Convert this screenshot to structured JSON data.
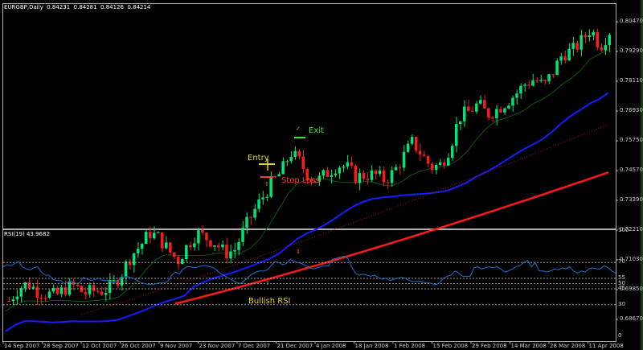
{
  "window": {
    "symbol_title": "EURGBP,Daily  0.84231  0.84281  0.84126  0.84214",
    "rsi_title": "RSI(19) 43.9682"
  },
  "colors": {
    "background": "#000000",
    "bull_candle": "#00e676",
    "bear_candle": "#ff1a1a",
    "ma_fast": "#0a5a0a",
    "ma_mid": "#1a1aff",
    "ma_slow_dotted": "#b01010",
    "ma_slowest": "#ff1a1a",
    "rsi_line": "#1e6fd0",
    "level_lines": "#c0c0c0",
    "annotation_yellow": "#e6d21a",
    "annotation_green": "#33e633",
    "annotation_red": "#ff4020",
    "arrow_orange": "#e0a020"
  },
  "price_axis": {
    "labels": [
      "0.80470",
      "0.79290",
      "0.78110",
      "0.76930",
      "0.75750",
      "0.74570",
      "0.73390",
      "0.72210",
      "0.71030",
      "0.69850",
      "0.68670"
    ]
  },
  "rsi_axis": {
    "labels": [
      "100",
      "70",
      "55",
      "50",
      "45",
      "30",
      "0"
    ]
  },
  "time_axis": {
    "labels": [
      "14 Sep 2007",
      "28 Sep 2007",
      "12 Oct 2007",
      "26 Oct 2007",
      "9 Nov 2007",
      "23 Nov 2007",
      "7 Dec 2007",
      "21 Dec 2007",
      "4 Jan 2008",
      "18 Jan 2008",
      "1 Feb 2008",
      "15 Feb 2008",
      "29 Feb 2008",
      "14 Mar 2008",
      "28 Mar 2008",
      "11 Apr 2008"
    ]
  },
  "annotations": {
    "entry": "Entry",
    "exit": "Exit",
    "stop_loss": "Stop Loss",
    "bullish_rsi": "Bullish RSI"
  },
  "chart_data": [
    {
      "type": "candlestick",
      "title": "EURGBP,Daily",
      "ohlc_header": {
        "open": 0.84231,
        "high": 0.84281,
        "low": 0.84126,
        "close": 0.84214
      },
      "ylim": [
        0.6808,
        0.8106
      ],
      "yticks": [
        0.8047,
        0.7929,
        0.7811,
        0.7693,
        0.7575,
        0.7457,
        0.7339,
        0.7221,
        0.7103,
        0.6985,
        0.6867
      ],
      "xticks": [
        "14 Sep 2007",
        "28 Sep 2007",
        "12 Oct 2007",
        "26 Oct 2007",
        "9 Nov 2007",
        "23 Nov 2007",
        "7 Dec 2007",
        "21 Dec 2007",
        "4 Jan 2008",
        "18 Jan 2008",
        "1 Feb 2008",
        "15 Feb 2008",
        "29 Feb 2008",
        "14 Mar 2008",
        "28 Mar 2008",
        "11 Apr 2008"
      ],
      "close_trend": [
        0.694,
        0.699,
        0.701,
        0.698,
        0.697,
        0.696,
        0.699,
        0.7,
        0.697,
        0.698,
        0.698,
        0.7,
        0.705,
        0.712,
        0.716,
        0.721,
        0.719,
        0.714,
        0.71,
        0.716,
        0.721,
        0.719,
        0.717,
        0.713,
        0.714,
        0.722,
        0.729,
        0.735,
        0.741,
        0.745,
        0.753,
        0.749,
        0.743,
        0.742,
        0.745,
        0.748,
        0.747,
        0.743,
        0.744,
        0.744,
        0.742,
        0.745,
        0.751,
        0.757,
        0.752,
        0.747,
        0.748,
        0.755,
        0.767,
        0.769,
        0.772,
        0.768,
        0.77,
        0.773,
        0.776,
        0.78,
        0.782,
        0.779,
        0.785,
        0.792,
        0.793,
        0.797,
        0.802,
        0.795,
        0.801
      ],
      "moving_averages": [
        {
          "name": "MA fast (dark green)",
          "start": 0.684,
          "end": 0.794
        },
        {
          "name": "MA mid (blue)",
          "start": 0.69,
          "end": 0.782
        },
        {
          "name": "MA slow (dotted red)",
          "start": 0.681,
          "end": 0.764
        },
        {
          "name": "MA slowest (thick red)",
          "start": 0.68,
          "end": 0.745
        }
      ],
      "annotations": [
        {
          "text": "Entry",
          "approx_date": "17 Dec 2007",
          "price": 0.7215
        },
        {
          "text": "Stop Loss",
          "approx_date": "17 Dec 2007",
          "price": 0.715
        },
        {
          "text": "Exit",
          "approx_date": "1 Jan 2008",
          "price": 0.7375
        }
      ]
    },
    {
      "type": "line",
      "title": "RSI(19) 43.9682",
      "ylim": [
        0,
        100
      ],
      "levels": [
        70,
        55,
        50,
        45,
        30
      ],
      "yticks": [
        100,
        70,
        55,
        50,
        45,
        30,
        0
      ],
      "values": [
        66,
        68,
        67,
        69,
        71,
        66,
        64,
        63,
        65,
        66,
        61,
        58,
        58,
        54,
        53,
        53,
        50,
        51,
        52,
        50,
        51,
        56,
        54,
        53,
        54,
        55,
        53,
        53,
        52,
        51,
        53,
        55,
        57,
        56,
        55,
        53,
        51,
        50,
        49,
        49,
        50,
        51,
        51,
        52,
        58,
        61,
        59,
        64,
        66,
        66,
        65,
        66,
        67,
        67,
        66,
        65,
        62,
        59,
        57,
        55,
        53,
        51,
        50,
        53,
        56,
        59,
        61,
        62,
        62,
        63,
        67,
        71,
        70,
        68,
        69,
        73,
        71,
        70,
        69,
        67,
        65,
        64,
        65,
        66,
        67,
        67,
        73,
        74,
        75,
        76,
        74,
        66,
        60,
        58,
        59,
        58,
        57,
        58,
        56,
        54,
        55,
        53,
        54,
        55,
        56,
        55,
        53,
        52,
        52,
        52,
        51,
        51,
        50,
        49,
        51,
        55,
        57,
        58,
        62,
        60,
        57,
        57,
        57,
        65,
        66,
        64,
        65,
        66,
        65,
        66,
        64,
        61,
        62,
        64,
        66,
        67,
        70,
        72,
        66,
        70,
        62,
        62,
        61,
        62,
        64,
        63,
        65,
        64,
        66,
        62,
        60,
        62,
        61,
        64,
        65,
        64,
        64,
        67,
        65,
        62,
        60
      ],
      "annotations": [
        {
          "text": "Bullish RSI",
          "x_date": "21 Dec 2007",
          "y": 38
        }
      ]
    }
  ]
}
